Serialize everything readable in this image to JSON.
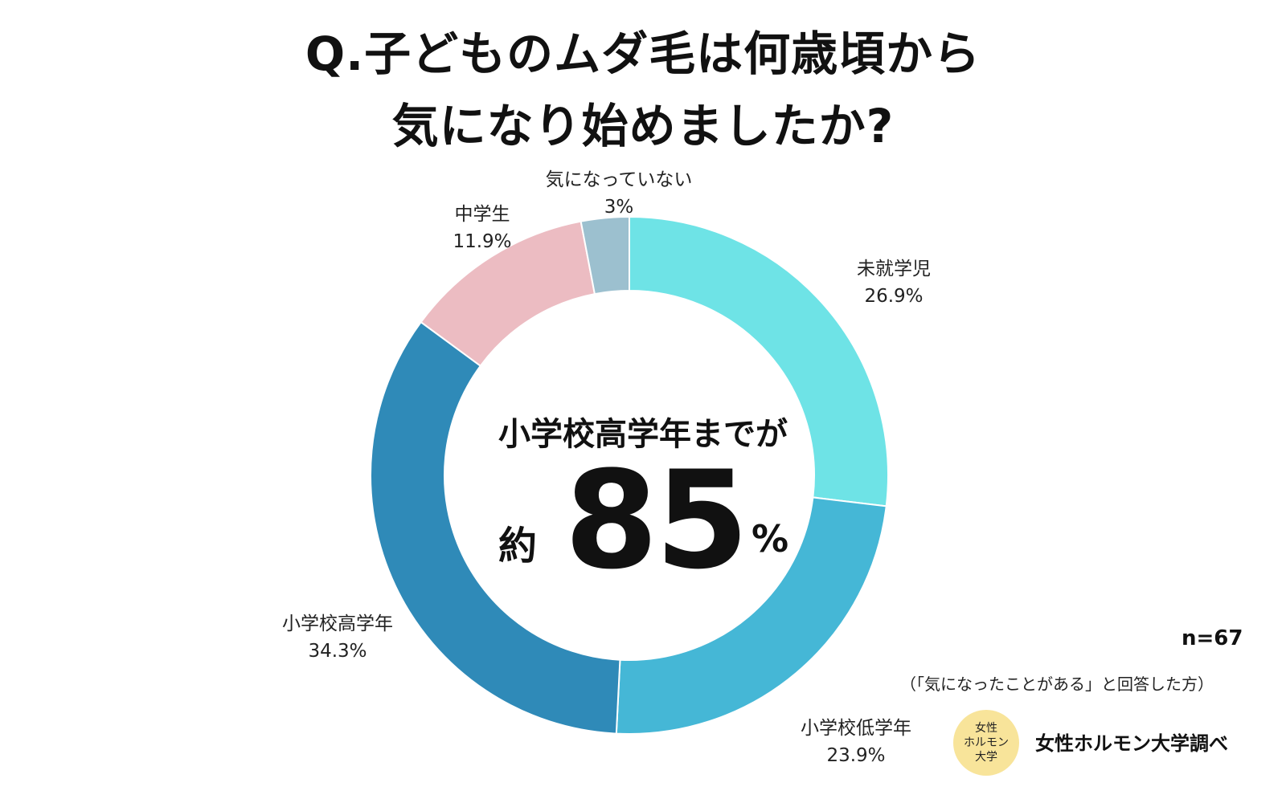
{
  "title": {
    "line1": "Q.子どものムダ毛は何歳頃から",
    "line2": "気になり始めましたか?"
  },
  "chart_data": {
    "type": "pie",
    "title": "Q.子どものムダ毛は何歳頃から気になり始めましたか?",
    "categories": [
      "未就学児",
      "小学校低学年",
      "小学校高学年",
      "中学生",
      "気になっていない"
    ],
    "values": [
      26.9,
      23.9,
      34.3,
      11.9,
      3
    ],
    "value_labels": [
      "26.9%",
      "23.9%",
      "34.3%",
      "11.9%",
      "3%"
    ],
    "colors": [
      "#6ee3e6",
      "#45b7d6",
      "#2f8ab8",
      "#ecbcc2",
      "#9cc0cf"
    ],
    "donut": true,
    "start_angle": "12 o'clock",
    "direction": "clockwise"
  },
  "center": {
    "headline": "小学校高学年までが",
    "prefix": "約",
    "value": "85",
    "suffix": "%"
  },
  "footer": {
    "n": "n=67",
    "respondents": "（「気になったことがある」と回答した方）",
    "badge_lines": [
      "女性",
      "ホルモン",
      "大学"
    ],
    "source": "女性ホルモン大学調べ"
  }
}
